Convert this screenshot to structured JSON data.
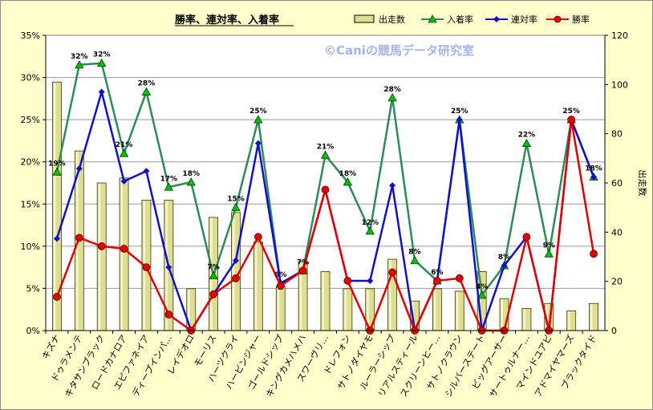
{
  "chart_data": {
    "type": "bar",
    "title": "勝率、連対率、入着率",
    "watermark": "©Caniの競馬データ研究室",
    "y2label": "出走数",
    "categories": [
      "キズナ",
      "ドゥラメンテ",
      "キタサンブラック",
      "ロードカナロア",
      "エピファネイア",
      "ディープインパ…",
      "レイデオロ",
      "モーリス",
      "ハーツクライ",
      "ハービンジャー",
      "ゴールドシップ",
      "キングカメハメハ",
      "スワーヴリ…",
      "ドレフォン",
      "サトノダイヤモ",
      "ルーラーシップ",
      "リアルスティール",
      "スクリーンヒー…",
      "サトノクラウン",
      "シルバーステート",
      "ビッグアーサー",
      "サートゥルナー…",
      "マインドユアビ",
      "アドマイヤマーズ",
      "ブラックタイド"
    ],
    "left_axis": {
      "ticks": [
        "0%",
        "5%",
        "10%",
        "15%",
        "20%",
        "25%",
        "30%",
        "35%"
      ],
      "ylim": [
        0,
        35
      ]
    },
    "right_axis": {
      "ticks": [
        "0",
        "20",
        "40",
        "60",
        "80",
        "100",
        "120"
      ],
      "ylim": [
        0,
        120
      ]
    },
    "legend": {
      "position": "top-right",
      "entries": [
        "出走数",
        "入着率",
        "連対率",
        "勝率"
      ]
    },
    "grid": true,
    "series": [
      {
        "name": "出走数",
        "kind": "bar",
        "axis": "right",
        "color": "#dede90",
        "values": [
          101,
          73,
          60,
          62,
          53,
          53,
          17,
          46,
          48,
          36,
          18,
          28,
          24,
          17,
          17,
          29,
          12,
          17,
          16,
          24,
          13,
          9,
          11,
          8,
          11
        ]
      },
      {
        "name": "入着率",
        "kind": "line",
        "axis": "left",
        "color": "#2e8b57",
        "values": [
          18.8,
          31.5,
          31.7,
          21.0,
          28.3,
          17.0,
          17.6,
          6.5,
          14.6,
          25.0,
          5.6,
          7.1,
          20.8,
          17.6,
          11.8,
          27.6,
          8.3,
          5.9,
          25.0,
          4.2,
          7.7,
          22.2,
          9.1,
          25.0,
          18.2
        ],
        "labels": [
          "19%",
          "32%",
          "32%",
          "21%",
          "28%",
          "17%",
          "18%",
          "7%",
          "15%",
          "25%",
          "6%",
          "7%",
          "21%",
          "18%",
          "12%",
          "28%",
          "8%",
          "6%",
          "25%",
          "4%",
          "8%",
          "22%",
          "9%",
          "25%",
          "18%"
        ]
      },
      {
        "name": "連対率",
        "kind": "line",
        "axis": "left",
        "color": "#1010c8",
        "values": [
          10.9,
          19.2,
          28.3,
          17.7,
          18.9,
          7.5,
          0,
          4.3,
          8.3,
          22.2,
          5.6,
          7.1,
          16.7,
          5.9,
          5.9,
          17.2,
          0,
          5.9,
          25.0,
          0,
          7.7,
          11.1,
          0,
          25.0,
          18.2
        ]
      },
      {
        "name": "勝率",
        "kind": "line",
        "axis": "left",
        "color": "#e00000",
        "values": [
          4.0,
          11.0,
          10.0,
          9.7,
          7.5,
          1.9,
          0,
          4.3,
          6.2,
          11.1,
          5.3,
          7.1,
          16.7,
          5.9,
          0,
          6.9,
          0,
          5.9,
          6.2,
          0,
          0,
          11.1,
          0,
          25.0,
          9.1
        ]
      }
    ]
  }
}
